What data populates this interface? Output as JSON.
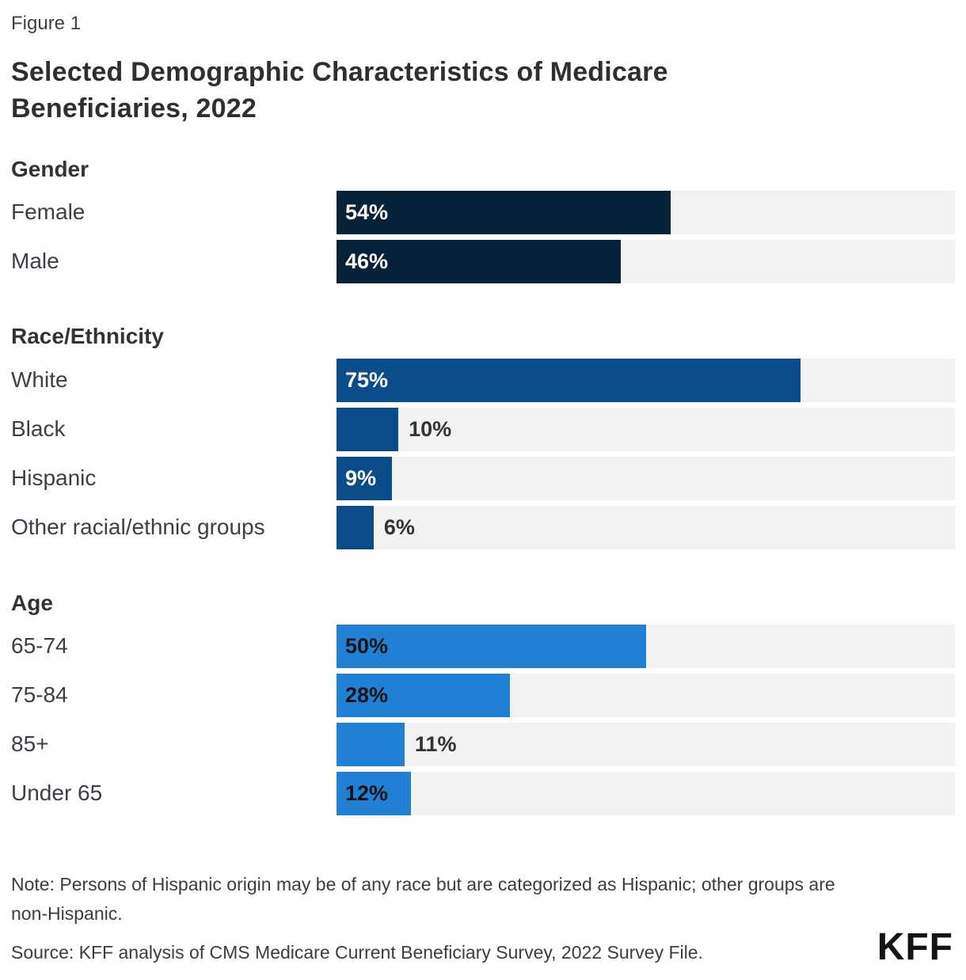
{
  "figure_label": "Figure 1",
  "title": "Selected Demographic Characteristics of Medicare Beneficiaries, 2022",
  "chart_data": {
    "type": "bar",
    "orientation": "horizontal",
    "unit": "percent",
    "xlim": [
      0,
      100
    ],
    "track_color": "#f2f2f2",
    "outside_label_color": "#333333",
    "sections": [
      {
        "heading": "Gender",
        "bar_color": "#06213a",
        "inside_label_color": "#ffffff",
        "rows": [
          {
            "label": "Female",
            "value": 54,
            "display": "54%",
            "label_inside": true
          },
          {
            "label": "Male",
            "value": 46,
            "display": "46%",
            "label_inside": true
          }
        ]
      },
      {
        "heading": "Race/Ethnicity",
        "bar_color": "#0b4d8b",
        "inside_label_color": "#ffffff",
        "rows": [
          {
            "label": "White",
            "value": 75,
            "display": "75%",
            "label_inside": true
          },
          {
            "label": "Black",
            "value": 10,
            "display": "10%",
            "label_inside": false
          },
          {
            "label": "Hispanic",
            "value": 9,
            "display": "9%",
            "label_inside": true
          },
          {
            "label": "Other racial/ethnic groups",
            "value": 6,
            "display": "6%",
            "label_inside": false
          }
        ]
      },
      {
        "heading": "Age",
        "bar_color": "#2080d4",
        "inside_label_color": "#111111",
        "rows": [
          {
            "label": "65-74",
            "value": 50,
            "display": "50%",
            "label_inside": true
          },
          {
            "label": "75-84",
            "value": 28,
            "display": "28%",
            "label_inside": true
          },
          {
            "label": "85+",
            "value": 11,
            "display": "11%",
            "label_inside": false
          },
          {
            "label": "Under 65",
            "value": 12,
            "display": "12%",
            "label_inside": true
          }
        ]
      }
    ]
  },
  "note": "Note: Persons of Hispanic origin may be of any race but are categorized as Hispanic; other groups are non-Hispanic.",
  "source": "Source: KFF analysis of CMS Medicare Current Beneficiary Survey, 2022 Survey File.",
  "logo": "KFF"
}
